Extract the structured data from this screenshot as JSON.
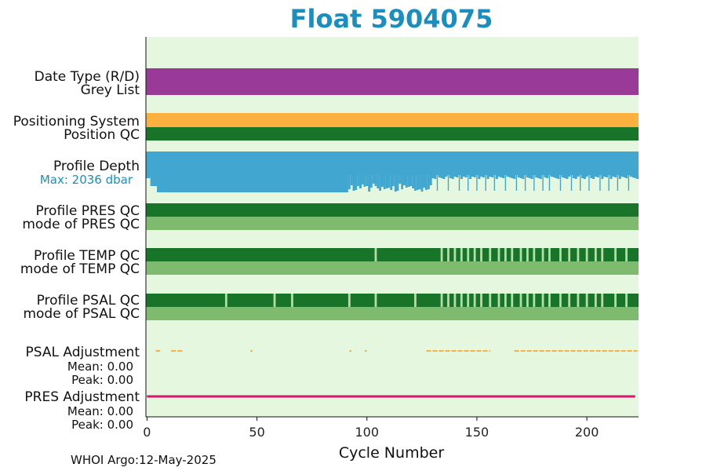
{
  "chart_data": {
    "type": "timeline",
    "title": "Float 5904075",
    "xlabel": "Cycle Number",
    "xlim": [
      -0.5,
      223.5
    ],
    "x_ticks": [
      0,
      50,
      100,
      150,
      200
    ],
    "colors": {
      "title": "#1a8fbf",
      "background": "#e5f8df",
      "purple": "#9a3a98",
      "orange": "#fbb03f",
      "qc_good": "#187428",
      "qc_mode": "#7ebb6e",
      "qc_light": "#b6dcaa",
      "depth": "#42a7d0",
      "psal_adj": "#fbb03f",
      "pres_adj": "#d8176c"
    },
    "rows": {
      "date_type": {
        "label_top": "Date Type (R/D)",
        "label_bottom": "Grey List",
        "value": "D"
      },
      "positioning": {
        "label_top": "Positioning System",
        "label_bottom": "Position QC"
      },
      "profile_depth": {
        "label": "Profile Depth",
        "max_label": "Max: 2036 dbar",
        "max_dbar": 2036,
        "shallow_cycles": [
          92,
          95,
          96,
          99,
          102,
          104,
          105,
          106,
          108,
          110,
          112,
          114,
          116,
          118,
          120,
          122,
          124,
          127,
          132,
          137,
          142,
          146,
          150,
          154,
          158,
          163,
          168,
          172,
          176,
          180,
          183,
          188,
          193,
          197,
          201,
          206,
          210,
          214,
          219
        ]
      },
      "pres_qc": {
        "label_top": "Profile PRES QC",
        "label_bottom": "mode of PRES QC"
      },
      "temp_qc": {
        "label_top": "Profile TEMP QC",
        "label_bottom": "mode of TEMP QC",
        "light_cycles": [
          104,
          134,
          137,
          140,
          143,
          146,
          149,
          152,
          156,
          160,
          163,
          166,
          170,
          173,
          176,
          180,
          183,
          188,
          192,
          196,
          200,
          204,
          207,
          213,
          218
        ]
      },
      "psal_qc": {
        "label_top": "Profile PSAL QC",
        "label_bottom": "mode of PSAL QC",
        "light_cycles": [
          36,
          58,
          66,
          92,
          104,
          122,
          134,
          137,
          140,
          143,
          146,
          149,
          152,
          156,
          160,
          163,
          166,
          170,
          173,
          176,
          180,
          183,
          188,
          192,
          196,
          200,
          204,
          207,
          213,
          218
        ]
      },
      "psal_adjustment": {
        "label": "PSAL Adjustment",
        "mean": "Mean: 0.00",
        "peak": "Peak: 0.00",
        "segments": [
          [
            4,
            6
          ],
          [
            11,
            16
          ],
          [
            47,
            48
          ],
          [
            92,
            93
          ],
          [
            99,
            100
          ],
          [
            127,
            156
          ],
          [
            167,
            223
          ]
        ]
      },
      "pres_adjustment": {
        "label": "PRES Adjustment",
        "mean": "Mean: 0.00",
        "peak": "Peak: 0.00",
        "range": [
          0,
          222
        ]
      }
    }
  },
  "footer": "WHOI Argo:12-May-2025"
}
